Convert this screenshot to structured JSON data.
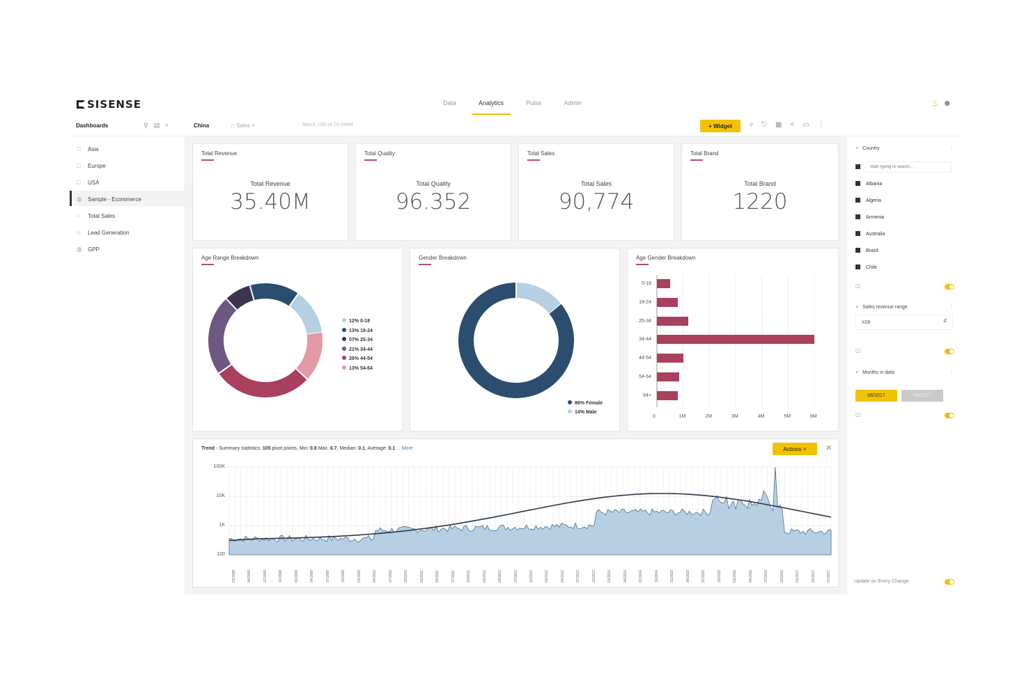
{
  "brand": {
    "logo_text": "SISENSE"
  },
  "nav": {
    "tabs": [
      "Data",
      "Analytics",
      "Pulse",
      "Admin"
    ],
    "active": "Analytics"
  },
  "toolbar": {
    "dashboards_label": "Dashboards",
    "breadcrumb_dashboard": "China",
    "breadcrumb_folder": "Sales",
    "breadcrumb_date": "March 12th at 10:18AM",
    "widget_button": "+ Widget"
  },
  "sidebar": {
    "items": [
      {
        "label": "Asia",
        "icon": "folder-icon"
      },
      {
        "label": "Europe",
        "icon": "folder-icon"
      },
      {
        "label": "USA",
        "icon": "folder-icon"
      },
      {
        "label": "Sample - Ecommerce",
        "icon": "dashboard-icon",
        "active": true
      },
      {
        "label": "Total Sales",
        "icon": "dashboard-icon"
      },
      {
        "label": "Lead Generation",
        "icon": "dashboard-icon"
      },
      {
        "label": "GPP",
        "icon": "dashboard-icon"
      }
    ]
  },
  "kpis": [
    {
      "title": "Total Revenue",
      "label": "Total Revenue",
      "value": "35.40M"
    },
    {
      "title": "Total Quality",
      "label": "Total Quality",
      "value": "96.352"
    },
    {
      "title": "Total Sales",
      "label": "Total Sales",
      "value": "90,774"
    },
    {
      "title": "Total Brand",
      "label": "Total Brand",
      "value": "1220"
    }
  ],
  "colors": {
    "accent": "#f2c200",
    "bar": "#a8405e",
    "navy": "#2b4e6e",
    "lightblue": "#b7cfe2"
  },
  "chart_data": [
    {
      "type": "pie",
      "title": "Age Range Breakdown",
      "legend": [
        "12% 0-18",
        "13% 19-24",
        "07% 25-34",
        "21% 34-44",
        "26% 44-54",
        "13% 54-64"
      ],
      "categories": [
        "0-18",
        "19-24",
        "25-34",
        "34-44",
        "44-54",
        "54-64"
      ],
      "values": [
        12,
        13,
        7,
        21,
        26,
        13
      ],
      "colors": [
        "#b7cfe2",
        "#2b4e6e",
        "#3b3350",
        "#6e5780",
        "#a8405e",
        "#e39aa6"
      ]
    },
    {
      "type": "pie",
      "title": "Gender Breakdown",
      "legend": [
        "86% Female",
        "14% Male"
      ],
      "categories": [
        "Female",
        "Male"
      ],
      "values": [
        86,
        14
      ],
      "colors": [
        "#2b4e6e",
        "#b7cfe2"
      ]
    },
    {
      "type": "bar",
      "title": "Age Gender Breakdown",
      "categories": [
        "0-18",
        "19-24",
        "25-34",
        "34-44",
        "44-54",
        "54-64",
        "64+"
      ],
      "values": [
        0.5,
        0.8,
        1.2,
        6.0,
        1.0,
        0.85,
        0.8
      ],
      "xticks": [
        "0",
        "1M",
        "2M",
        "3M",
        "4M",
        "5M",
        "6M"
      ],
      "xlim": [
        0,
        6
      ]
    },
    {
      "type": "area",
      "title": "Trend",
      "summary": {
        "prefix": "Trend",
        "text": " - Summary statistics: ",
        "points": "105",
        "points_label": " pivot points, Min: ",
        "min": "0.8",
        "max_label": " Max: ",
        "max": "6.7",
        "median_label": ", Median: ",
        "median": "0.1",
        "avg_label": ", Average: ",
        "avg": "0.1",
        "more": "... More"
      },
      "actions_button": "Actions",
      "yticks": [
        "100K",
        "10K",
        "1K",
        "100"
      ],
      "scale": "log",
      "xticks": [
        "01/2008",
        "04/2008",
        "07/2008",
        "10/2008",
        "01/2009",
        "04/2009",
        "07/2009",
        "10/2009",
        "01/2010",
        "04/2010",
        "07/2010",
        "10/2010",
        "01/2011",
        "04/2011",
        "07/2011",
        "10/2011",
        "01/2012",
        "04/2012",
        "07/2012",
        "10/2012",
        "01/2013",
        "04/2013",
        "07/2013",
        "10/2013",
        "01/2014",
        "04/2014",
        "07/2014",
        "10/2014",
        "01/2015",
        "04/2015",
        "07/2015",
        "10/2015",
        "01/2016",
        "04/2016",
        "07/2016",
        "10/2016",
        "01/2017",
        "04/2017",
        "07/2017"
      ]
    }
  ],
  "filters": {
    "country": {
      "title": "Country",
      "search_placeholder": "Start typing to search...",
      "items": [
        "Albania",
        "Algeria",
        "Armenia",
        "Australia",
        "Brazil",
        "Chile"
      ]
    },
    "revenue_range": {
      "title": "Sales revenue range",
      "value": "X08"
    },
    "months": {
      "title": "Months in data",
      "from": "06/2017",
      "to": "06/2017"
    },
    "update_label": "Update on Every Change"
  }
}
